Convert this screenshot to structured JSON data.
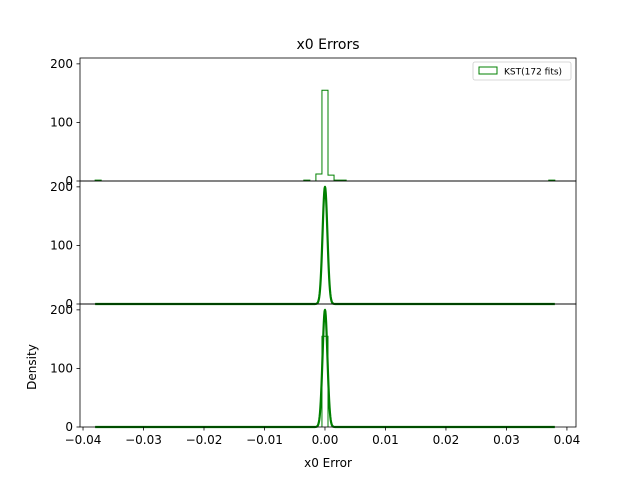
{
  "chart_data": {
    "type": "histogram",
    "title": "x0 Errors",
    "xlabel": "x0 Error",
    "ylabel": "Density",
    "xlim": [
      -0.0405,
      0.0415
    ],
    "x_ticks": [
      -0.04,
      -0.03,
      -0.02,
      -0.01,
      0.0,
      0.01,
      0.02,
      0.03,
      0.04
    ],
    "x_tick_labels": [
      "−0.04",
      "−0.03",
      "−0.02",
      "−0.01",
      "0.00",
      "0.01",
      "0.02",
      "0.03",
      "0.04"
    ],
    "color": "#008000",
    "panels": [
      {
        "kind": "histogram",
        "ylim": [
          0,
          210
        ],
        "y_ticks": [
          0,
          100,
          200
        ],
        "y_tick_labels": [
          "0",
          "100",
          "200"
        ],
        "legend": {
          "label": "KST(172 fits)",
          "loc": "upper right"
        },
        "bins": {
          "edges": [
            -0.0015,
            -0.0005,
            0.0005,
            0.0015
          ],
          "heights": [
            12,
            155,
            10
          ]
        },
        "sparse_bins": [
          {
            "x0": -0.038,
            "x1": -0.037,
            "h": 1.5
          },
          {
            "x0": -0.0035,
            "x1": -0.0025,
            "h": 1.5
          },
          {
            "x0": 0.0015,
            "x1": 0.0035,
            "h": 1.5
          },
          {
            "x0": 0.037,
            "x1": 0.038,
            "h": 1.5
          }
        ]
      },
      {
        "kind": "density",
        "ylim": [
          0,
          210
        ],
        "y_ticks": [
          0,
          100,
          200
        ],
        "y_tick_labels": [
          "0",
          "100",
          "200"
        ],
        "curve": {
          "mean": 0.0,
          "sd": 0.0004,
          "peak": 200,
          "xmin": -0.038,
          "xmax": 0.038
        }
      },
      {
        "kind": "combined",
        "ylim": [
          0,
          210
        ],
        "y_ticks": [
          0,
          100,
          200
        ],
        "y_tick_labels": [
          "0",
          "100",
          "200"
        ],
        "bins": {
          "edges": [
            -0.0005,
            0.0005
          ],
          "heights": [
            155
          ]
        },
        "curve": {
          "mean": 0.0,
          "sd": 0.0004,
          "peak": 200,
          "xmin": -0.038,
          "xmax": 0.038
        }
      }
    ]
  }
}
